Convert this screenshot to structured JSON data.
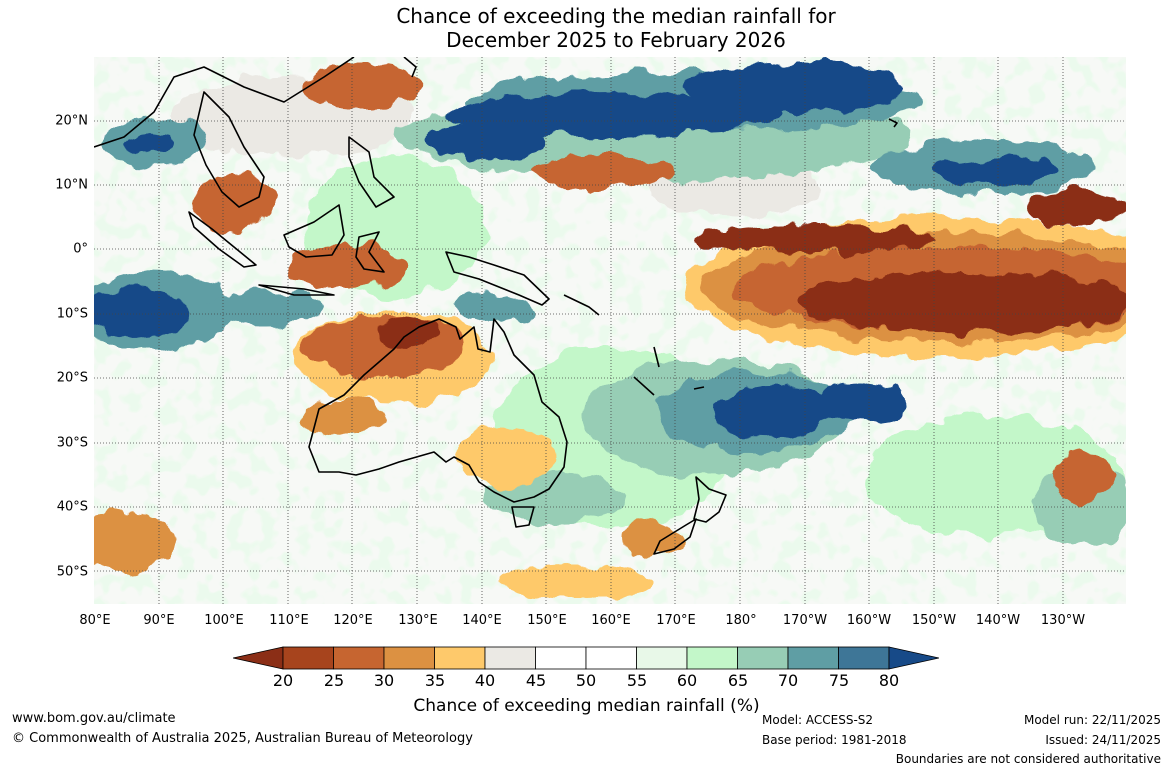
{
  "title": {
    "line1": "Chance of exceeding the median rainfall for",
    "line2": "December 2025 to February 2026"
  },
  "axes": {
    "lat_labels": [
      "20°N",
      "10°N",
      "0°",
      "10°S",
      "20°S",
      "30°S",
      "40°S",
      "50°S"
    ],
    "lon_labels": [
      "80°E",
      "90°E",
      "100°E",
      "110°E",
      "120°E",
      "130°E",
      "140°E",
      "150°E",
      "160°E",
      "170°E",
      "180°",
      "170°W",
      "160°W",
      "150°W",
      "140°W",
      "130°W"
    ]
  },
  "colorbar": {
    "ticks": [
      "20",
      "25",
      "30",
      "35",
      "40",
      "45",
      "50",
      "55",
      "60",
      "65",
      "70",
      "75",
      "80"
    ],
    "colors": [
      "#8b2e16",
      "#a7441d",
      "#c66530",
      "#dc9142",
      "#fec96b",
      "#ebe9e4",
      "#ffffff",
      "#ffffff",
      "#e8f8e8",
      "#c3f7c9",
      "#97cdb5",
      "#5f9ea4",
      "#3e7697",
      "#174a88"
    ],
    "label": "Chance of exceeding median rainfall (%)"
  },
  "footer": {
    "url": "www.bom.gov.au/climate",
    "copyright": "© Commonwealth of Australia 2025, Australian Bureau of Meteorology",
    "model": "Model: ACCESS-S2",
    "base_period": "Base period: 1981-2018",
    "model_run": "Model run: 22/11/2025",
    "issued": "Issued: 24/11/2025",
    "disclaimer": "Boundaries are not considered authoritative"
  }
}
